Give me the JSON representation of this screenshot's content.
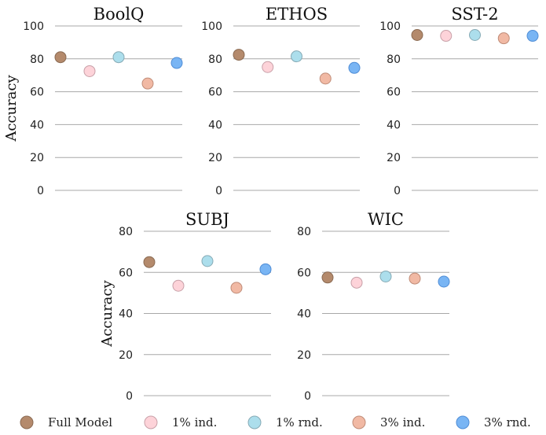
{
  "legend": [
    {
      "name": "Full Model",
      "color": "#b48a6c",
      "stroke": "#8a6a52"
    },
    {
      "name": "1% ind.",
      "color": "#fdd3d9",
      "stroke": "#c8a0a8"
    },
    {
      "name": "1% rnd.",
      "color": "#acdeec",
      "stroke": "#86aab5"
    },
    {
      "name": "3% ind.",
      "color": "#f1b9a4",
      "stroke": "#c08c78"
    },
    {
      "name": "3% rnd.",
      "color": "#79b5f4",
      "stroke": "#4f8dd6"
    }
  ],
  "chart_data": [
    {
      "type": "scatter",
      "title": "BoolQ",
      "ylabel": "Accuracy",
      "ylim": [
        0,
        100
      ],
      "yticks": [
        0,
        20,
        40,
        60,
        80,
        100
      ],
      "grid": true,
      "series": [
        {
          "name": "Full Model",
          "value": 81
        },
        {
          "name": "1% ind.",
          "value": 72.5
        },
        {
          "name": "1% rnd.",
          "value": 81
        },
        {
          "name": "3% ind.",
          "value": 65
        },
        {
          "name": "3% rnd.",
          "value": 77.5
        }
      ]
    },
    {
      "type": "scatter",
      "title": "ETHOS",
      "ylabel": "",
      "ylim": [
        0,
        100
      ],
      "yticks": [
        0,
        20,
        40,
        60,
        80,
        100
      ],
      "grid": true,
      "series": [
        {
          "name": "Full Model",
          "value": 82.5
        },
        {
          "name": "1% ind.",
          "value": 75
        },
        {
          "name": "1% rnd.",
          "value": 81.5
        },
        {
          "name": "3% ind.",
          "value": 68
        },
        {
          "name": "3% rnd.",
          "value": 74.5
        }
      ]
    },
    {
      "type": "scatter",
      "title": "SST-2",
      "ylabel": "",
      "ylim": [
        0,
        100
      ],
      "yticks": [
        0,
        20,
        40,
        60,
        80,
        100
      ],
      "grid": true,
      "series": [
        {
          "name": "Full Model",
          "value": 94.5
        },
        {
          "name": "1% ind.",
          "value": 94
        },
        {
          "name": "1% rnd.",
          "value": 94.5
        },
        {
          "name": "3% ind.",
          "value": 92.5
        },
        {
          "name": "3% rnd.",
          "value": 94
        }
      ]
    },
    {
      "type": "scatter",
      "title": "SUBJ",
      "ylabel": "Accuracy",
      "ylim": [
        0,
        80
      ],
      "yticks": [
        0,
        20,
        40,
        60,
        80
      ],
      "grid": true,
      "series": [
        {
          "name": "Full Model",
          "value": 65
        },
        {
          "name": "1% ind.",
          "value": 53.5
        },
        {
          "name": "1% rnd.",
          "value": 65.5
        },
        {
          "name": "3% ind.",
          "value": 52.5
        },
        {
          "name": "3% rnd.",
          "value": 61.5
        }
      ]
    },
    {
      "type": "scatter",
      "title": "WIC",
      "ylabel": "",
      "ylim": [
        0,
        80
      ],
      "yticks": [
        0,
        20,
        40,
        60,
        80
      ],
      "grid": true,
      "series": [
        {
          "name": "Full Model",
          "value": 57.5
        },
        {
          "name": "1% ind.",
          "value": 55
        },
        {
          "name": "1% rnd.",
          "value": 58
        },
        {
          "name": "3% ind.",
          "value": 57
        },
        {
          "name": "3% rnd.",
          "value": 55.5
        }
      ]
    }
  ]
}
